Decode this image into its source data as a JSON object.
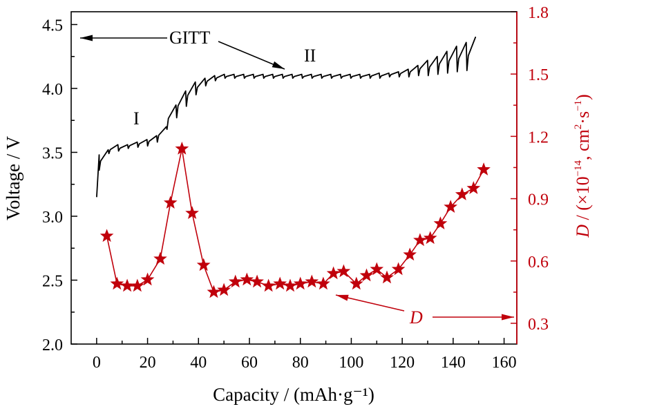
{
  "chart_data": {
    "type": "line",
    "xlabel": "Capacity / (mAh·g⁻¹)",
    "ylabel_left": "Voltage / V",
    "ylabel_right": {
      "D": "D",
      "rest": " / (×10",
      "exp1": "−14",
      "unit": ", cm",
      "exp2": "2",
      "unit2": "·s",
      "exp3": "−1",
      "close": ")"
    },
    "xlim": [
      -10,
      165
    ],
    "ylim_left": [
      2.0,
      4.6
    ],
    "ylim_right": [
      0.2,
      1.8
    ],
    "xticks": [
      "0",
      "20",
      "40",
      "60",
      "80",
      "100",
      "120",
      "140",
      "160"
    ],
    "yticks_left": [
      "2.0",
      "2.5",
      "3.0",
      "3.5",
      "4.0",
      "4.5"
    ],
    "yticks_right": [
      "0.3",
      "0.6",
      "0.9",
      "1.2",
      "1.5",
      "1.8"
    ],
    "colors": {
      "voltage": "#000000",
      "diffusion": "#c0000b"
    },
    "annotations": {
      "gitt": "GITT",
      "region1": "I",
      "region2": "II",
      "d_label": "D"
    },
    "series": [
      {
        "name": "GITT",
        "axis": "left",
        "steps": [
          {
            "x0": 0.0,
            "x1": 1.0,
            "low": 3.15,
            "high": 3.48
          },
          {
            "x0": 1.0,
            "x1": 4.8,
            "low": 3.36,
            "high": 3.52
          },
          {
            "x0": 4.8,
            "x1": 8.6,
            "low": 3.49,
            "high": 3.56
          },
          {
            "x0": 8.6,
            "x1": 12.4,
            "low": 3.51,
            "high": 3.56
          },
          {
            "x0": 12.4,
            "x1": 16.2,
            "low": 3.53,
            "high": 3.58
          },
          {
            "x0": 16.2,
            "x1": 20.0,
            "low": 3.54,
            "high": 3.6
          },
          {
            "x0": 20.0,
            "x1": 23.8,
            "low": 3.55,
            "high": 3.63
          },
          {
            "x0": 23.8,
            "x1": 27.6,
            "low": 3.58,
            "high": 3.7
          },
          {
            "x0": 27.6,
            "x1": 31.4,
            "low": 3.68,
            "high": 3.87
          },
          {
            "x0": 31.4,
            "x1": 35.2,
            "low": 3.77,
            "high": 3.98
          },
          {
            "x0": 35.2,
            "x1": 39.0,
            "low": 3.86,
            "high": 4.05
          },
          {
            "x0": 39.0,
            "x1": 42.8,
            "low": 3.95,
            "high": 4.08
          },
          {
            "x0": 42.8,
            "x1": 46.6,
            "low": 4.02,
            "high": 4.1
          },
          {
            "x0": 46.6,
            "x1": 50.4,
            "low": 4.06,
            "high": 4.11
          },
          {
            "x0": 50.4,
            "x1": 54.2,
            "low": 4.08,
            "high": 4.11
          },
          {
            "x0": 54.2,
            "x1": 58.0,
            "low": 4.08,
            "high": 4.11
          },
          {
            "x0": 58.0,
            "x1": 61.8,
            "low": 4.08,
            "high": 4.11
          },
          {
            "x0": 61.8,
            "x1": 65.6,
            "low": 4.08,
            "high": 4.11
          },
          {
            "x0": 65.6,
            "x1": 69.4,
            "low": 4.08,
            "high": 4.11
          },
          {
            "x0": 69.4,
            "x1": 73.2,
            "low": 4.08,
            "high": 4.11
          },
          {
            "x0": 73.2,
            "x1": 77.0,
            "low": 4.08,
            "high": 4.11
          },
          {
            "x0": 77.0,
            "x1": 80.8,
            "low": 4.08,
            "high": 4.11
          },
          {
            "x0": 80.8,
            "x1": 84.6,
            "low": 4.08,
            "high": 4.11
          },
          {
            "x0": 84.6,
            "x1": 88.4,
            "low": 4.08,
            "high": 4.11
          },
          {
            "x0": 88.4,
            "x1": 92.2,
            "low": 4.08,
            "high": 4.11
          },
          {
            "x0": 92.2,
            "x1": 96.0,
            "low": 4.08,
            "high": 4.11
          },
          {
            "x0": 96.0,
            "x1": 99.8,
            "low": 4.08,
            "high": 4.11
          },
          {
            "x0": 99.8,
            "x1": 103.6,
            "low": 4.08,
            "high": 4.11
          },
          {
            "x0": 103.6,
            "x1": 107.4,
            "low": 4.08,
            "high": 4.11
          },
          {
            "x0": 107.4,
            "x1": 111.2,
            "low": 4.08,
            "high": 4.12
          },
          {
            "x0": 111.2,
            "x1": 115.0,
            "low": 4.08,
            "high": 4.12
          },
          {
            "x0": 115.0,
            "x1": 118.8,
            "low": 4.09,
            "high": 4.13
          },
          {
            "x0": 118.8,
            "x1": 122.6,
            "low": 4.09,
            "high": 4.15
          },
          {
            "x0": 122.6,
            "x1": 126.4,
            "low": 4.09,
            "high": 4.18
          },
          {
            "x0": 126.4,
            "x1": 130.2,
            "low": 4.1,
            "high": 4.22
          },
          {
            "x0": 130.2,
            "x1": 134.0,
            "low": 4.1,
            "high": 4.25
          },
          {
            "x0": 134.0,
            "x1": 137.8,
            "low": 4.11,
            "high": 4.29
          },
          {
            "x0": 137.8,
            "x1": 141.6,
            "low": 4.12,
            "high": 4.33
          },
          {
            "x0": 141.6,
            "x1": 145.4,
            "low": 4.13,
            "high": 4.36
          },
          {
            "x0": 145.4,
            "x1": 149.0,
            "low": 4.14,
            "high": 4.4
          }
        ]
      },
      {
        "name": "D",
        "axis": "right",
        "x": [
          4,
          8,
          12,
          16,
          20,
          25,
          29,
          33.5,
          37.5,
          42,
          46,
          50,
          54.5,
          59,
          63,
          67.5,
          72,
          76,
          80,
          84.5,
          89,
          93,
          97,
          102,
          106,
          110,
          114,
          118.5,
          123,
          127,
          131,
          135,
          139,
          143.5,
          148,
          152
        ],
        "y": [
          0.72,
          0.49,
          0.48,
          0.48,
          0.51,
          0.61,
          0.88,
          1.14,
          0.83,
          0.58,
          0.45,
          0.46,
          0.5,
          0.51,
          0.5,
          0.48,
          0.49,
          0.48,
          0.49,
          0.5,
          0.49,
          0.54,
          0.55,
          0.49,
          0.53,
          0.56,
          0.52,
          0.56,
          0.63,
          0.7,
          0.71,
          0.78,
          0.86,
          0.92,
          0.95,
          1.04
        ]
      }
    ]
  }
}
